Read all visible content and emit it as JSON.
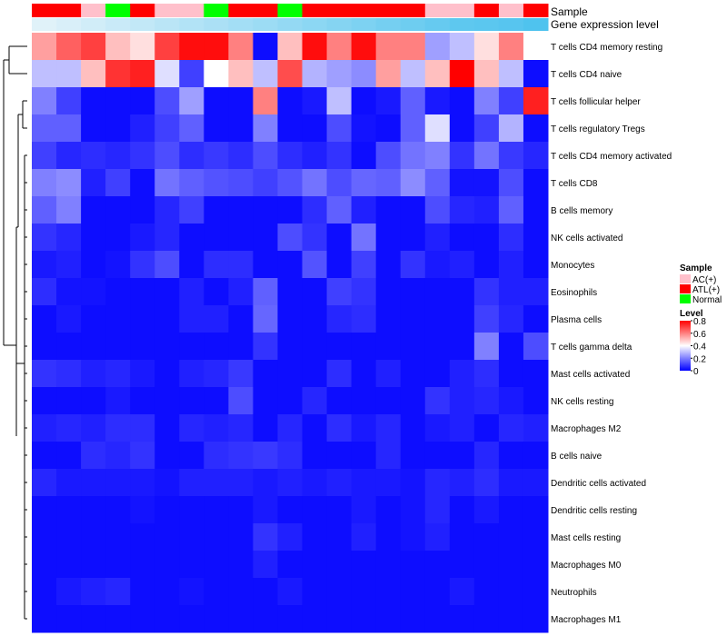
{
  "chart_data": {
    "type": "heatmap",
    "annotations": {
      "sample_label": "Sample",
      "expression_label": "Gene expression level"
    },
    "samples": [
      "ATL(+)",
      "ATL(+)",
      "AC(+)",
      "Normal",
      "ATL(+)",
      "AC(+)",
      "AC(+)",
      "Normal",
      "ATL(+)",
      "ATL(+)",
      "Normal",
      "ATL(+)",
      "ATL(+)",
      "ATL(+)",
      "ATL(+)",
      "ATL(+)",
      "AC(+)",
      "AC(+)",
      "ATL(+)",
      "AC(+)",
      "ATL(+)"
    ],
    "expression_level": [
      0.05,
      0.1,
      0.15,
      0.2,
      0.25,
      0.3,
      0.35,
      0.4,
      0.45,
      0.5,
      0.55,
      0.6,
      0.65,
      0.7,
      0.75,
      0.8,
      0.85,
      0.9,
      0.92,
      0.95,
      1.0
    ],
    "rows": [
      "T cells CD4 memory resting",
      "T cells CD4 naive",
      "T cells follicular helper",
      "T cells regulatory  Tregs",
      "T cells CD4 memory activated",
      "T cells CD8",
      "B cells memory",
      "NK cells activated",
      "Monocytes",
      "Eosinophils",
      "Plasma cells",
      "T cells gamma delta",
      "Mast cells activated",
      "NK cells resting",
      "Macrophages M2",
      "B cells naive",
      "Dendritic cells activated",
      "Dendritic cells resting",
      "Mast cells resting",
      "Macrophages M0",
      "Neutrophils",
      "Macrophages M1"
    ],
    "values": [
      [
        0.55,
        0.65,
        0.7,
        0.5,
        0.45,
        0.7,
        0.78,
        0.78,
        0.6,
        0.02,
        0.5,
        0.78,
        0.6,
        0.78,
        0.6,
        0.6,
        0.25,
        0.3,
        0.45,
        0.6,
        0.4
      ],
      [
        0.3,
        0.3,
        0.5,
        0.72,
        0.75,
        0.35,
        0.1,
        0.4,
        0.5,
        0.3,
        0.68,
        0.28,
        0.25,
        0.22,
        0.55,
        0.3,
        0.5,
        0.8,
        0.5,
        0.3,
        0.02
      ],
      [
        0.2,
        0.1,
        0.02,
        0.02,
        0.02,
        0.12,
        0.25,
        0.02,
        0.02,
        0.6,
        0.02,
        0.04,
        0.3,
        0.02,
        0.04,
        0.15,
        0.04,
        0.02,
        0.2,
        0.1,
        0.75
      ],
      [
        0.15,
        0.15,
        0.02,
        0.02,
        0.05,
        0.1,
        0.15,
        0.02,
        0.02,
        0.2,
        0.02,
        0.02,
        0.12,
        0.03,
        0.02,
        0.15,
        0.35,
        0.02,
        0.1,
        0.28,
        0.02
      ],
      [
        0.1,
        0.06,
        0.07,
        0.06,
        0.08,
        0.12,
        0.07,
        0.09,
        0.07,
        0.12,
        0.07,
        0.05,
        0.08,
        0.02,
        0.12,
        0.18,
        0.2,
        0.08,
        0.18,
        0.09,
        0.06
      ],
      [
        0.2,
        0.22,
        0.05,
        0.1,
        0.02,
        0.18,
        0.15,
        0.13,
        0.12,
        0.1,
        0.13,
        0.18,
        0.12,
        0.16,
        0.15,
        0.22,
        0.15,
        0.03,
        0.03,
        0.12,
        0.02
      ],
      [
        0.15,
        0.2,
        0.02,
        0.02,
        0.02,
        0.06,
        0.1,
        0.02,
        0.02,
        0.02,
        0.02,
        0.07,
        0.15,
        0.05,
        0.02,
        0.02,
        0.12,
        0.06,
        0.05,
        0.15,
        0.02
      ],
      [
        0.08,
        0.06,
        0.02,
        0.02,
        0.04,
        0.06,
        0.02,
        0.02,
        0.02,
        0.02,
        0.12,
        0.08,
        0.02,
        0.18,
        0.02,
        0.02,
        0.05,
        0.02,
        0.02,
        0.07,
        0.02
      ],
      [
        0.04,
        0.05,
        0.02,
        0.03,
        0.08,
        0.12,
        0.02,
        0.07,
        0.07,
        0.02,
        0.02,
        0.13,
        0.02,
        0.1,
        0.02,
        0.08,
        0.04,
        0.05,
        0.02,
        0.05,
        0.02
      ],
      [
        0.07,
        0.03,
        0.03,
        0.02,
        0.02,
        0.02,
        0.05,
        0.02,
        0.05,
        0.15,
        0.02,
        0.02,
        0.1,
        0.08,
        0.02,
        0.02,
        0.02,
        0.02,
        0.08,
        0.05,
        0.05
      ],
      [
        0.02,
        0.04,
        0.02,
        0.02,
        0.02,
        0.02,
        0.05,
        0.05,
        0.02,
        0.16,
        0.02,
        0.02,
        0.06,
        0.07,
        0.02,
        0.02,
        0.02,
        0.02,
        0.1,
        0.06,
        0.02
      ],
      [
        0.02,
        0.02,
        0.02,
        0.02,
        0.02,
        0.02,
        0.02,
        0.02,
        0.02,
        0.08,
        0.02,
        0.02,
        0.02,
        0.02,
        0.02,
        0.02,
        0.02,
        0.02,
        0.2,
        0.02,
        0.12
      ],
      [
        0.08,
        0.07,
        0.05,
        0.06,
        0.04,
        0.02,
        0.05,
        0.06,
        0.09,
        0.02,
        0.02,
        0.02,
        0.07,
        0.02,
        0.05,
        0.02,
        0.02,
        0.05,
        0.07,
        0.02,
        0.02
      ],
      [
        0.02,
        0.02,
        0.02,
        0.04,
        0.02,
        0.02,
        0.02,
        0.02,
        0.12,
        0.02,
        0.02,
        0.06,
        0.02,
        0.02,
        0.02,
        0.02,
        0.08,
        0.05,
        0.06,
        0.04,
        0.02
      ],
      [
        0.05,
        0.06,
        0.05,
        0.07,
        0.07,
        0.02,
        0.06,
        0.05,
        0.06,
        0.02,
        0.06,
        0.02,
        0.07,
        0.04,
        0.06,
        0.02,
        0.04,
        0.05,
        0.02,
        0.06,
        0.05
      ],
      [
        0.02,
        0.02,
        0.07,
        0.06,
        0.08,
        0.02,
        0.02,
        0.07,
        0.08,
        0.09,
        0.07,
        0.02,
        0.02,
        0.02,
        0.06,
        0.02,
        0.02,
        0.02,
        0.06,
        0.02,
        0.02
      ],
      [
        0.06,
        0.04,
        0.04,
        0.04,
        0.04,
        0.03,
        0.05,
        0.05,
        0.05,
        0.04,
        0.05,
        0.04,
        0.05,
        0.04,
        0.04,
        0.03,
        0.06,
        0.05,
        0.07,
        0.04,
        0.04
      ],
      [
        0.02,
        0.02,
        0.02,
        0.02,
        0.03,
        0.02,
        0.02,
        0.02,
        0.02,
        0.04,
        0.02,
        0.02,
        0.02,
        0.04,
        0.02,
        0.03,
        0.06,
        0.02,
        0.04,
        0.02,
        0.02
      ],
      [
        0.02,
        0.02,
        0.02,
        0.02,
        0.02,
        0.02,
        0.02,
        0.02,
        0.02,
        0.08,
        0.05,
        0.02,
        0.02,
        0.05,
        0.02,
        0.03,
        0.05,
        0.02,
        0.02,
        0.02,
        0.02
      ],
      [
        0.02,
        0.02,
        0.02,
        0.02,
        0.02,
        0.02,
        0.02,
        0.02,
        0.02,
        0.05,
        0.02,
        0.02,
        0.02,
        0.02,
        0.02,
        0.02,
        0.02,
        0.02,
        0.02,
        0.02,
        0.02
      ],
      [
        0.02,
        0.04,
        0.05,
        0.06,
        0.02,
        0.02,
        0.03,
        0.02,
        0.02,
        0.02,
        0.04,
        0.02,
        0.02,
        0.02,
        0.02,
        0.02,
        0.02,
        0.04,
        0.02,
        0.02,
        0.02
      ],
      [
        0.02,
        0.02,
        0.02,
        0.02,
        0.02,
        0.02,
        0.02,
        0.02,
        0.02,
        0.02,
        0.02,
        0.02,
        0.02,
        0.02,
        0.02,
        0.02,
        0.02,
        0.02,
        0.02,
        0.02,
        0.02
      ]
    ],
    "legend": {
      "sample_title": "Sample",
      "sample_entries": [
        {
          "label": "AC(+)",
          "color": "#ffc0cb"
        },
        {
          "label": "ATL(+)",
          "color": "#ff0000"
        },
        {
          "label": "Normal",
          "color": "#00ff00"
        }
      ],
      "level_title": "Level",
      "level_ticks": [
        "0.8",
        "0.6",
        "0.4",
        "0.2",
        "0"
      ],
      "level_tick_values": [
        0.8,
        0.6,
        0.4,
        0.2,
        0
      ],
      "level_range": [
        0,
        0.8
      ]
    },
    "colors": {
      "low": "#0000ff",
      "mid": "#ffffff",
      "high": "#ff0000",
      "expr_low": "#e8f4fa",
      "expr_high": "#4fc3ee"
    }
  }
}
